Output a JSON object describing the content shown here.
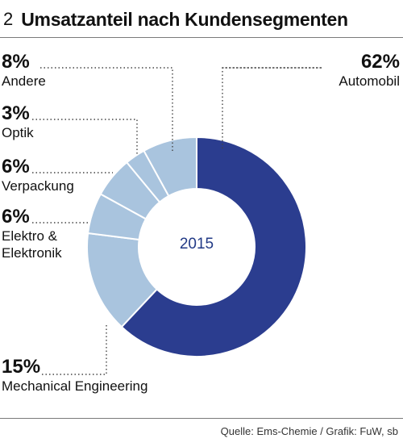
{
  "header": {
    "number": "2",
    "title": "Umsatzanteil nach Kundensegmenten"
  },
  "source": "Quelle: Ems-Chemie / Grafik: FuW, sb",
  "chart_data": {
    "type": "pie",
    "donut": true,
    "center_label": "2015",
    "slices": [
      {
        "label": "Automobil",
        "value": 62,
        "display": "62%",
        "color": "#2b3d8f"
      },
      {
        "label": "Mechanical Engineering",
        "value": 15,
        "display": "15%",
        "color": "#a9c4de"
      },
      {
        "label": "Elektro & Elektronik",
        "value": 6,
        "display": "6%",
        "color": "#a9c4de"
      },
      {
        "label": "Verpackung",
        "value": 6,
        "display": "6%",
        "color": "#a9c4de"
      },
      {
        "label": "Optik",
        "value": 3,
        "display": "3%",
        "color": "#a9c4de"
      },
      {
        "label": "Andere",
        "value": 8,
        "display": "8%",
        "color": "#a9c4de"
      }
    ]
  }
}
